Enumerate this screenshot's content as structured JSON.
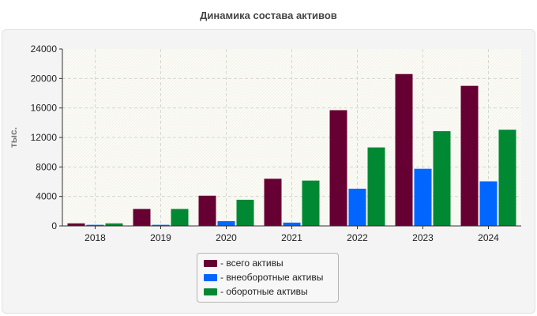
{
  "chart_data": {
    "type": "bar",
    "title": "Динамика состава активов",
    "xlabel": "",
    "ylabel": "тыс.",
    "categories": [
      "2018",
      "2019",
      "2020",
      "2021",
      "2022",
      "2023",
      "2024"
    ],
    "ylim": [
      0,
      24000
    ],
    "yticks": [
      "0",
      "4000",
      "8000",
      "12000",
      "16000",
      "20000",
      "24000"
    ],
    "grid": true,
    "legend_position": "bottom",
    "series": [
      {
        "name": "- всего активы",
        "color": "#660033",
        "values": [
          350,
          2300,
          4100,
          6400,
          15700,
          20600,
          19000
        ]
      },
      {
        "name": "- внеоборотные активы",
        "color": "#0066ff",
        "values": [
          150,
          150,
          650,
          450,
          5050,
          7750,
          6050
        ]
      },
      {
        "name": "- оборотные активы",
        "color": "#008833",
        "values": [
          350,
          2300,
          3550,
          6150,
          10650,
          12850,
          13050
        ]
      }
    ]
  }
}
